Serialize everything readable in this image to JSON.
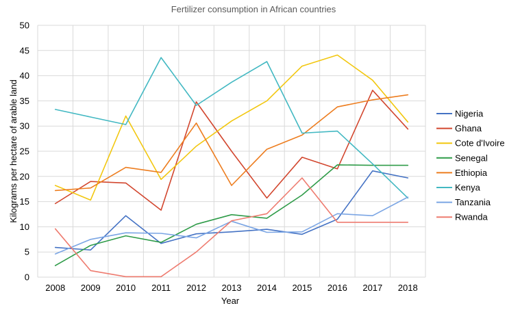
{
  "chart_data": {
    "type": "line",
    "title": "Fertilizer consumption in African countries",
    "xlabel": "Year",
    "ylabel": "Kilograms per hectare of arable land",
    "ylim": [
      0,
      50
    ],
    "yticks": [
      0,
      5,
      10,
      15,
      20,
      25,
      30,
      35,
      40,
      45,
      50
    ],
    "grid": true,
    "legend": "right",
    "categories": [
      "2008",
      "2009",
      "2010",
      "2011",
      "2012",
      "2013",
      "2014",
      "2015",
      "2016",
      "2017",
      "2018"
    ],
    "series": [
      {
        "name": "Nigeria",
        "color": "#4472c4",
        "values": [
          5.9,
          5.4,
          12.2,
          6.7,
          8.6,
          9.0,
          9.5,
          8.5,
          11.5,
          21.1,
          19.7
        ]
      },
      {
        "name": "Ghana",
        "color": "#d2462e",
        "values": [
          14.6,
          19.0,
          18.7,
          13.3,
          34.8,
          25.0,
          15.7,
          23.8,
          21.5,
          37.1,
          29.4
        ]
      },
      {
        "name": "Cote d'Ivoire",
        "color": "#f2c70f",
        "values": [
          18.2,
          15.3,
          32.0,
          19.4,
          26.0,
          31.0,
          35.0,
          41.9,
          44.1,
          39.1,
          30.8
        ]
      },
      {
        "name": "Senegal",
        "color": "#2e9b48",
        "values": [
          2.3,
          6.3,
          8.2,
          6.9,
          10.5,
          12.4,
          11.7,
          16.3,
          22.3,
          22.2,
          22.2
        ]
      },
      {
        "name": "Ethiopia",
        "color": "#ed7d1f",
        "values": [
          17.2,
          17.7,
          21.8,
          20.8,
          30.6,
          18.2,
          25.4,
          28.2,
          33.8,
          35.2,
          36.2
        ]
      },
      {
        "name": "Kenya",
        "color": "#42b8c2",
        "values": [
          33.3,
          31.8,
          30.3,
          43.6,
          34.1,
          38.7,
          42.8,
          28.6,
          29.0,
          22.5,
          15.7
        ]
      },
      {
        "name": "Tanzania",
        "color": "#7aa5e4",
        "values": [
          4.6,
          7.5,
          8.8,
          8.7,
          7.8,
          11.1,
          8.9,
          9.0,
          12.6,
          12.2,
          15.9
        ]
      },
      {
        "name": "Rwanda",
        "color": "#ee7b6f",
        "values": [
          9.6,
          1.3,
          0.1,
          0.1,
          5.0,
          11.2,
          12.6,
          19.7,
          10.9,
          10.9,
          10.9
        ]
      }
    ]
  }
}
